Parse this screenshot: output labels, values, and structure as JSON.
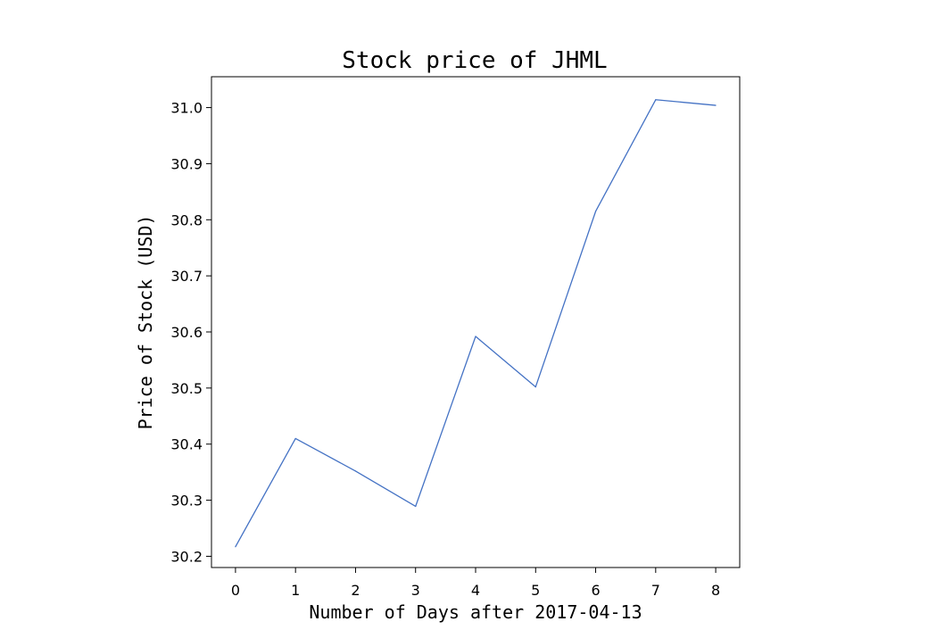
{
  "chart_data": {
    "type": "line",
    "title": "Stock price of JHML",
    "xlabel": "Number of Days after 2017-04-13",
    "ylabel": "Price of Stock (USD)",
    "x": [
      0,
      1,
      2,
      3,
      4,
      5,
      6,
      7,
      8
    ],
    "series": [
      {
        "values": [
          30.217,
          30.41,
          30.352,
          30.289,
          30.592,
          30.502,
          30.815,
          31.014,
          31.004
        ]
      }
    ],
    "xticks": [
      "0",
      "1",
      "2",
      "3",
      "4",
      "5",
      "6",
      "7",
      "8"
    ],
    "yticks": [
      "30.2",
      "30.3",
      "30.4",
      "30.5",
      "30.6",
      "30.7",
      "30.8",
      "30.9",
      "31.0"
    ],
    "xlim": [
      -0.4,
      8.4
    ],
    "ylim": [
      30.18,
      31.055
    ],
    "grid": false,
    "colors": {
      "line": "#4472c4",
      "axes": "#000000"
    }
  }
}
